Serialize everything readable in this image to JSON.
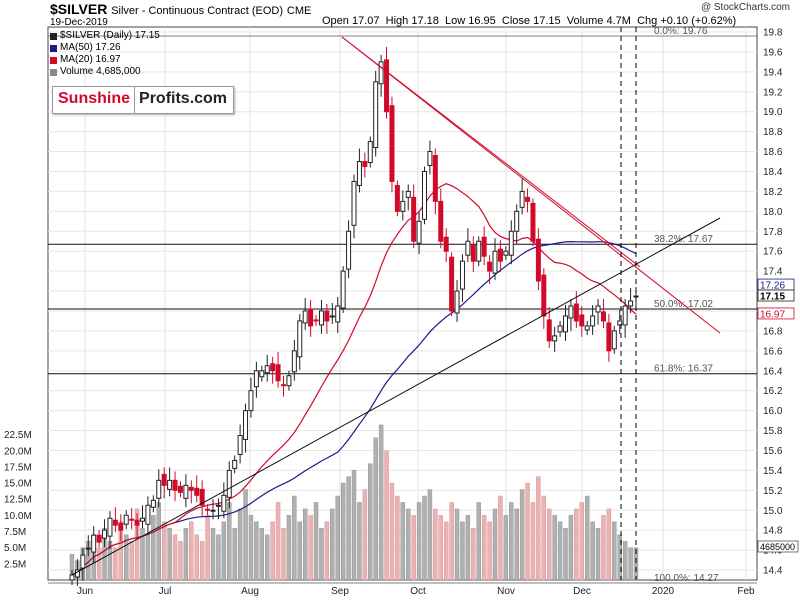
{
  "header": {
    "symbol": "$SILVER",
    "description": "Silver - Continuous Contract (EOD)",
    "exchange": "CME",
    "date": "19-Dec-2019",
    "open_label": "Open",
    "open": "17.07",
    "high_label": "High",
    "high": "17.18",
    "low_label": "Low",
    "low": "16.95",
    "close_label": "Close",
    "close": "17.15",
    "volume_label": "Volume",
    "volume": "4.7M",
    "chg_label": "Chg",
    "chg": "+0.10 (+0.62%)",
    "credit": "@ StockCharts.com"
  },
  "legend": {
    "price": "$SILVER (Daily) 17.15",
    "ma50": "MA(50) 17.26",
    "ma20": "MA(20) 16.97",
    "volume": "Volume 4,685,000"
  },
  "logo": {
    "part1": "Sunshine",
    "part2": "Profits.com"
  },
  "colors": {
    "up": "#222222",
    "down": "#d10a2a",
    "ma50": "#1a1a8c",
    "ma20": "#d10a2a",
    "vol_up": "#b0b0b0",
    "vol_down": "#eab2b2",
    "fib_text": "#555555"
  },
  "chart_data": {
    "type": "candlestick",
    "x_ticks": [
      "Jun",
      "Jul",
      "Aug",
      "Sep",
      "Oct",
      "Nov",
      "Dec",
      "2020",
      "Feb"
    ],
    "y_ticks": [
      "14.4",
      "14.6",
      "14.8",
      "15.0",
      "15.2",
      "15.4",
      "15.6",
      "15.8",
      "16.0",
      "16.2",
      "16.4",
      "16.6",
      "16.8",
      "17.0",
      "17.2",
      "17.4",
      "17.6",
      "17.8",
      "18.0",
      "18.2",
      "18.4",
      "18.6",
      "18.8",
      "19.0",
      "19.2",
      "19.4",
      "19.6",
      "19.8"
    ],
    "volume_ticks": [
      "2.5M",
      "5.0M",
      "7.5M",
      "10.0M",
      "12.5M",
      "15.0M",
      "17.5M",
      "20.0M",
      "22.5M"
    ],
    "ylim": [
      14.3,
      19.85
    ],
    "volume_max": 26,
    "price_labels": {
      "ma50": "17.26",
      "close": "17.15",
      "ma20": "16.97",
      "volume": "4685000"
    },
    "fib_levels": [
      {
        "label": "0.0%: 19.76",
        "value": 19.76
      },
      {
        "label": "38.2%: 17.67",
        "value": 17.67
      },
      {
        "label": "50.0%: 17.02",
        "value": 17.02
      },
      {
        "label": "61.8%: 16.37",
        "value": 16.37
      },
      {
        "label": "100.0%: 14.27",
        "value": 14.27
      }
    ],
    "closes": [
      14.35,
      14.4,
      14.55,
      14.62,
      14.75,
      14.68,
      14.8,
      14.92,
      14.85,
      14.8,
      14.95,
      14.9,
      14.85,
      14.92,
      15.05,
      15.1,
      15.3,
      15.25,
      15.3,
      15.2,
      15.18,
      15.25,
      15.2,
      15.15,
      15.05,
      15.0,
      15.0,
      15.05,
      15.15,
      15.4,
      15.5,
      15.75,
      16.0,
      16.2,
      16.4,
      16.4,
      16.45,
      16.4,
      16.3,
      16.25,
      16.35,
      16.6,
      16.9,
      17.0,
      16.85,
      16.9,
      17.0,
      16.9,
      16.95,
      17.05,
      17.4,
      17.8,
      18.3,
      18.5,
      18.45,
      18.7,
      19.3,
      19.5,
      19.0,
      18.3,
      18.0,
      18.1,
      18.2,
      17.7,
      17.9,
      18.4,
      18.6,
      18.1,
      17.7,
      17.6,
      17.0,
      17.2,
      17.5,
      17.7,
      17.5,
      17.7,
      17.55,
      17.4,
      17.6,
      17.5,
      17.6,
      17.8,
      18.0,
      18.2,
      18.1,
      17.7,
      17.3,
      16.95,
      16.7,
      16.75,
      16.85,
      16.95,
      17.05,
      16.9,
      16.85,
      16.85,
      16.95,
      17.05,
      16.9,
      16.6,
      16.8,
      16.9,
      17.05,
      17.1,
      17.15
    ],
    "ma20_label_values": {
      "ma20_last": 16.97,
      "ma50_last": 17.26
    }
  }
}
